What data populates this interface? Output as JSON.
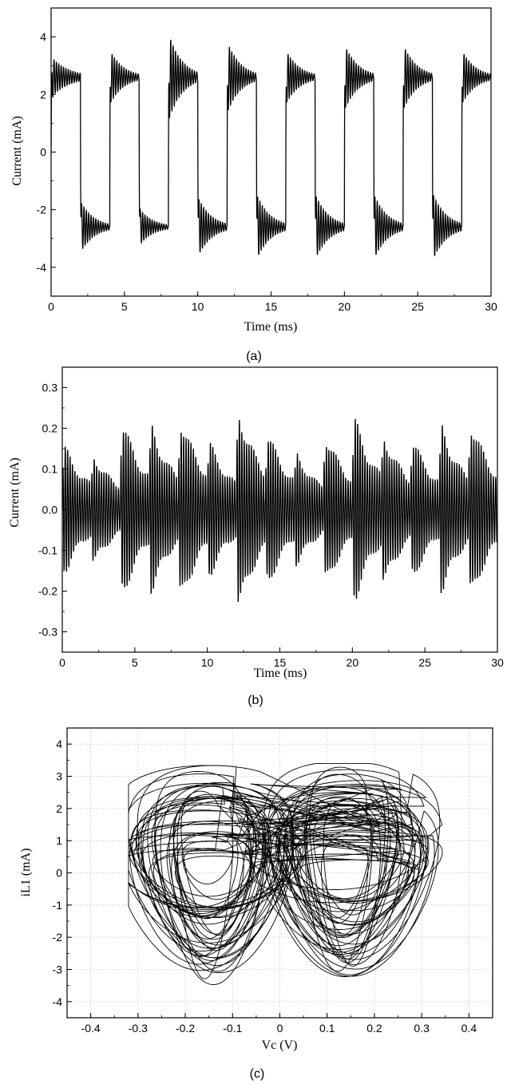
{
  "chart_data": [
    {
      "panel_label": "(a)",
      "type": "line",
      "xlabel": "Time (ms)",
      "ylabel": "Current (mA)",
      "xlim": [
        0,
        30
      ],
      "ylim": [
        -5,
        5
      ],
      "xticks": [
        0,
        5,
        10,
        15,
        20,
        25,
        30
      ],
      "yticks": [
        -4,
        -2,
        0,
        2,
        4
      ],
      "grid": false,
      "series": [
        {
          "values": {
            "switch_times_ms": [
              2,
              4,
              6,
              8,
              10,
              12,
              14,
              16,
              18,
              20,
              22,
              24,
              26,
              28
            ],
            "upper_level": 2.6,
            "lower_level": -2.6,
            "peak_values": [
              3.4,
              4.0,
              3.7,
              3.4,
              3.6,
              3.6,
              3.4,
              3.3,
              3.8,
              3.9
            ],
            "trough_values": [
              -3.35,
              -3.1,
              -3.5,
              -3.6,
              -3.6,
              -3.6,
              -3.65
            ]
          }
        }
      ]
    },
    {
      "panel_label": "(b)",
      "type": "line",
      "xlabel": "Time (ms)",
      "ylabel": "Current (mA)",
      "xlim": [
        0,
        30
      ],
      "ylim": [
        -0.35,
        0.35
      ],
      "xticks": [
        0,
        5,
        10,
        15,
        20,
        25,
        30
      ],
      "yticks": [
        -0.3,
        -0.2,
        -0.1,
        0.0,
        0.1,
        0.2,
        0.3
      ],
      "ytick_labels": [
        "-0.3",
        "-0.2",
        "-0.1",
        "0.0",
        "0.1",
        "0.2",
        "0.3"
      ],
      "grid": false,
      "series": [
        {
          "values": {
            "burst_times_ms": [
              0,
              2,
              4,
              6,
              8,
              10,
              12,
              14,
              16,
              18,
              20,
              22,
              24,
              26,
              28
            ],
            "max_value": 0.25,
            "min_value": -0.29
          }
        }
      ]
    },
    {
      "panel_label": "(c)",
      "type": "scatter",
      "xlabel": "Vc (V)",
      "ylabel": "iL1 (mA)",
      "xlim": [
        -0.45,
        0.45
      ],
      "ylim": [
        -4.5,
        4.5
      ],
      "xticks": [
        -0.4,
        -0.3,
        -0.2,
        -0.1,
        0.0,
        0.1,
        0.2,
        0.3,
        0.4
      ],
      "yticks": [
        -4,
        -3,
        -2,
        -1,
        0,
        1,
        2,
        3,
        4
      ],
      "grid": true,
      "series": [
        {
          "values": {
            "attractor": "double-scroll",
            "vc_range": [
              -0.32,
              0.35
            ],
            "il1_range": [
              -3.6,
              3.4
            ],
            "scroll_centers": [
              [
                -0.15,
                0.0
              ],
              [
                0.14,
                0.0
              ]
            ]
          }
        }
      ]
    }
  ]
}
